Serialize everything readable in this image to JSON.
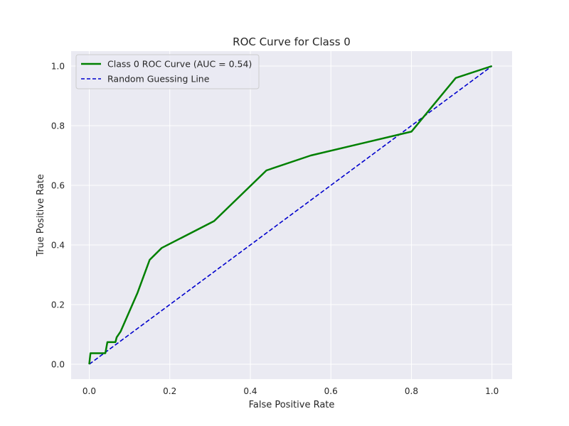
{
  "chart_data": {
    "type": "line",
    "title": "ROC Curve for Class 0",
    "xlabel": "False Positive Rate",
    "ylabel": "True Positive Rate",
    "xlim": [
      -0.045,
      1.05
    ],
    "ylim": [
      -0.05,
      1.05
    ],
    "xticks": [
      0.0,
      0.2,
      0.4,
      0.6,
      0.8,
      1.0
    ],
    "yticks": [
      0.0,
      0.2,
      0.4,
      0.6,
      0.8,
      1.0
    ],
    "grid": true,
    "legend_position": "top-left",
    "background_color": "#eaeaf2",
    "series": [
      {
        "name": "Class 0 ROC Curve (AUC = 0.54)",
        "color": "#008000",
        "style": "solid",
        "x": [
          0.0,
          0.003,
          0.04,
          0.045,
          0.065,
          0.068,
          0.078,
          0.12,
          0.15,
          0.18,
          0.31,
          0.44,
          0.55,
          0.8,
          0.91,
          1.0
        ],
        "y": [
          0.0,
          0.037,
          0.037,
          0.074,
          0.074,
          0.09,
          0.11,
          0.24,
          0.35,
          0.39,
          0.48,
          0.65,
          0.7,
          0.78,
          0.96,
          1.0
        ]
      },
      {
        "name": "Random Guessing Line",
        "color": "#0000cc",
        "style": "dashed",
        "x": [
          0.0,
          1.0
        ],
        "y": [
          0.0,
          1.0
        ]
      }
    ]
  }
}
